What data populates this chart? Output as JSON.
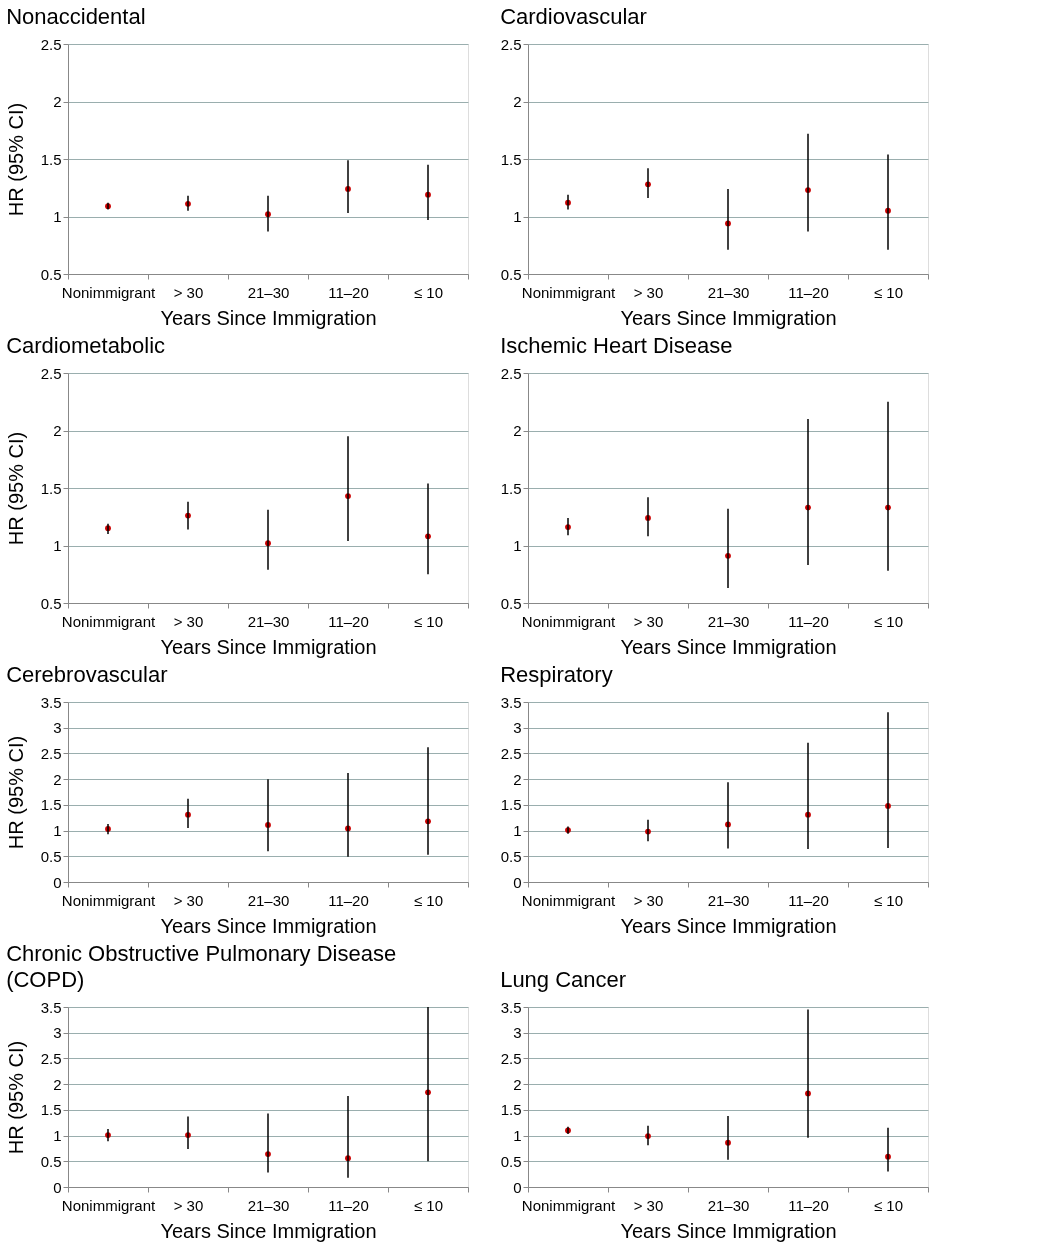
{
  "chart_data": [
    {
      "type": "scatter",
      "title": "Nonaccidental",
      "xlabel": "Years Since Immigration",
      "ylabel": "HR (95% CI)",
      "categories": [
        "Nonimmigrant",
        "> 30",
        "21–30",
        "11–20",
        "≤ 10"
      ],
      "series": [
        {
          "color": "#cc0000",
          "values": [
            1.09,
            1.11,
            1.02,
            1.24,
            1.19
          ],
          "errors": [
            [
              1.06,
              1.12
            ],
            [
              1.05,
              1.18
            ],
            [
              0.87,
              1.18
            ],
            [
              1.03,
              1.49
            ],
            [
              0.97,
              1.45
            ]
          ]
        }
      ],
      "ylim": [
        0.5,
        2.5
      ],
      "yticks": [
        0.5,
        1,
        1.5,
        2,
        2.5
      ],
      "grid": "y",
      "marker": "circle"
    },
    {
      "type": "scatter",
      "title": "Cardiovascular",
      "xlabel": "Years Since Immigration",
      "categories": [
        "Nonimmigrant",
        "> 30",
        "21–30",
        "11–20",
        "≤ 10"
      ],
      "series": [
        {
          "color": "#cc0000",
          "values": [
            1.12,
            1.28,
            0.94,
            1.23,
            1.05
          ],
          "errors": [
            [
              1.06,
              1.19
            ],
            [
              1.16,
              1.42
            ],
            [
              0.71,
              1.24
            ],
            [
              0.87,
              1.72
            ],
            [
              0.71,
              1.54
            ]
          ]
        }
      ],
      "ylim": [
        0.5,
        2.5
      ],
      "yticks": [
        0.5,
        1,
        1.5,
        2,
        2.5
      ],
      "grid": "y",
      "marker": "circle"
    },
    {
      "type": "scatter",
      "title": "Cardiometabolic",
      "xlabel": "Years Since Immigration",
      "ylabel": "HR (95% CI)",
      "categories": [
        "Nonimmigrant",
        "> 30",
        "21–30",
        "11–20",
        "≤ 10"
      ],
      "series": [
        {
          "color": "#cc0000",
          "values": [
            1.15,
            1.26,
            1.02,
            1.43,
            1.08
          ],
          "errors": [
            [
              1.1,
              1.19
            ],
            [
              1.14,
              1.38
            ],
            [
              0.79,
              1.31
            ],
            [
              1.04,
              1.95
            ],
            [
              0.75,
              1.54
            ]
          ]
        }
      ],
      "ylim": [
        0.5,
        2.5
      ],
      "yticks": [
        0.5,
        1,
        1.5,
        2,
        2.5
      ],
      "grid": "y",
      "marker": "circle"
    },
    {
      "type": "scatter",
      "title": "Ischemic Heart Disease",
      "xlabel": "Years Since Immigration",
      "categories": [
        "Nonimmigrant",
        "> 30",
        "21–30",
        "11–20",
        "≤ 10"
      ],
      "series": [
        {
          "color": "#cc0000",
          "values": [
            1.16,
            1.24,
            0.91,
            1.33,
            1.33
          ],
          "errors": [
            [
              1.09,
              1.24
            ],
            [
              1.08,
              1.42
            ],
            [
              0.63,
              1.32
            ],
            [
              0.83,
              2.1
            ],
            [
              0.78,
              2.25
            ]
          ]
        }
      ],
      "ylim": [
        0.5,
        2.5
      ],
      "yticks": [
        0.5,
        1,
        1.5,
        2,
        2.5
      ],
      "grid": "y",
      "marker": "circle"
    },
    {
      "type": "scatter",
      "title": "Cerebrovascular",
      "xlabel": "Years Since Immigration",
      "ylabel": "HR (95% CI)",
      "categories": [
        "Nonimmigrant",
        "> 30",
        "21–30",
        "11–20",
        "≤ 10"
      ],
      "series": [
        {
          "color": "#cc0000",
          "values": [
            1.03,
            1.31,
            1.11,
            1.04,
            1.18
          ],
          "errors": [
            [
              0.93,
              1.13
            ],
            [
              1.05,
              1.62
            ],
            [
              0.6,
              2.0
            ],
            [
              0.49,
              2.12
            ],
            [
              0.53,
              2.62
            ]
          ]
        }
      ],
      "ylim": [
        0,
        3.5
      ],
      "yticks": [
        0,
        0.5,
        1,
        1.5,
        2,
        2.5,
        3,
        3.5
      ],
      "grid": "y",
      "marker": "circle"
    },
    {
      "type": "scatter",
      "title": "Respiratory",
      "xlabel": "Years Since Immigration",
      "categories": [
        "Nonimmigrant",
        "> 30",
        "21–30",
        "11–20",
        "≤ 10"
      ],
      "series": [
        {
          "color": "#cc0000",
          "values": [
            1.01,
            0.98,
            1.12,
            1.31,
            1.48
          ],
          "errors": [
            [
              0.94,
              1.08
            ],
            [
              0.79,
              1.21
            ],
            [
              0.65,
              1.94
            ],
            [
              0.64,
              2.71
            ],
            [
              0.66,
              3.3
            ]
          ]
        }
      ],
      "ylim": [
        0,
        3.5
      ],
      "yticks": [
        0,
        0.5,
        1,
        1.5,
        2,
        2.5,
        3,
        3.5
      ],
      "grid": "y",
      "marker": "circle"
    },
    {
      "type": "scatter",
      "title": "Chronic Obstructive Pulmonary Disease\n(COPD)",
      "xlabel": "Years Since Immigration",
      "ylabel": "HR (95% CI)",
      "categories": [
        "Nonimmigrant",
        "> 30",
        "21–30",
        "11–20",
        "≤ 10"
      ],
      "series": [
        {
          "color": "#cc0000",
          "values": [
            1.01,
            1.01,
            0.64,
            0.56,
            1.84
          ],
          "errors": [
            [
              0.89,
              1.13
            ],
            [
              0.74,
              1.37
            ],
            [
              0.28,
              1.43
            ],
            [
              0.18,
              1.77
            ],
            [
              0.5,
              3.5
            ]
          ]
        }
      ],
      "ylim": [
        0,
        3.5
      ],
      "yticks": [
        0,
        0.5,
        1,
        1.5,
        2,
        2.5,
        3,
        3.5
      ],
      "grid": "y",
      "marker": "circle"
    },
    {
      "type": "scatter",
      "title": "Lung Cancer",
      "xlabel": "Years Since Immigration",
      "categories": [
        "Nonimmigrant",
        "> 30",
        "21–30",
        "11–20",
        "≤ 10"
      ],
      "series": [
        {
          "color": "#cc0000",
          "values": [
            1.1,
            0.99,
            0.86,
            1.82,
            0.59
          ],
          "errors": [
            [
              1.03,
              1.17
            ],
            [
              0.81,
              1.19
            ],
            [
              0.53,
              1.38
            ],
            [
              0.96,
              3.45
            ],
            [
              0.3,
              1.15
            ]
          ]
        }
      ],
      "ylim": [
        0,
        3.5
      ],
      "yticks": [
        0,
        0.5,
        1,
        1.5,
        2,
        2.5,
        3,
        3.5
      ],
      "grid": "y",
      "marker": "circle"
    }
  ]
}
